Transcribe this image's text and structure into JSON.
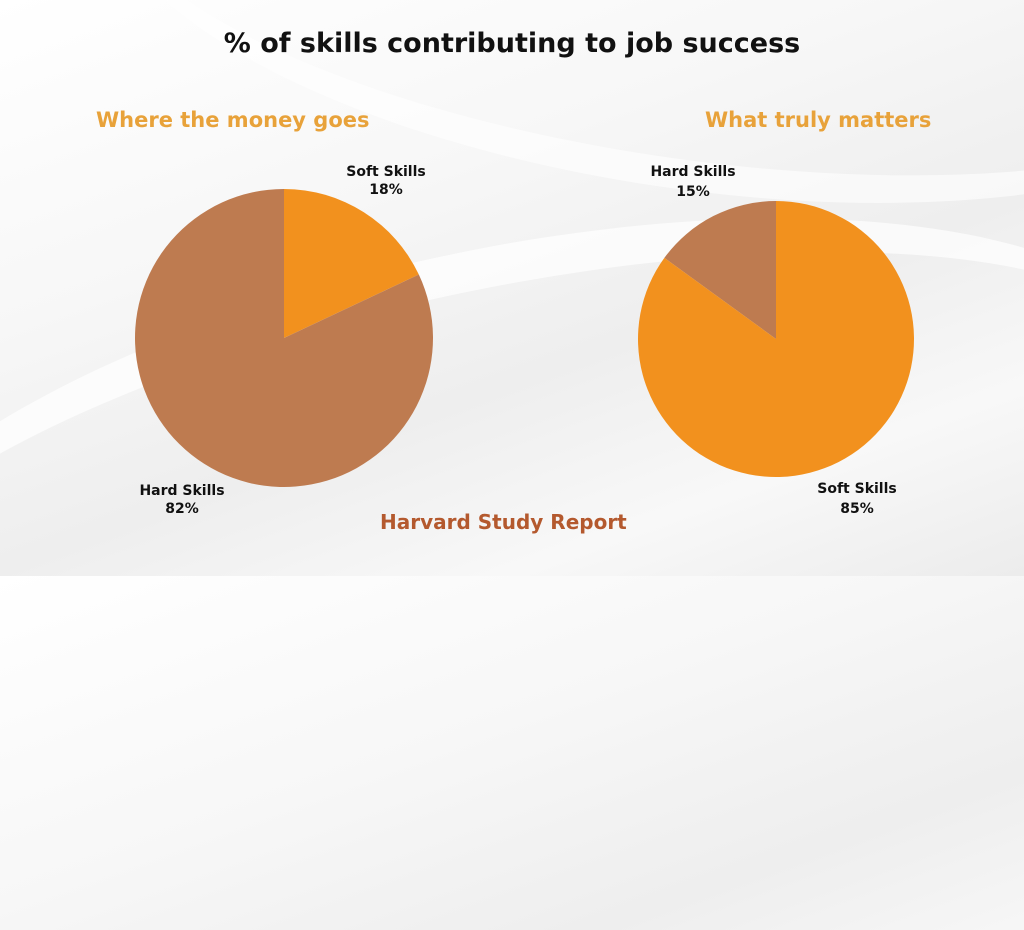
{
  "title": "% of skills contributing to job success",
  "source": "Harvard Study Report",
  "colors": {
    "soft": "#f2911e",
    "hard": "#be7b50"
  },
  "chart_data": [
    {
      "type": "pie",
      "title": "Where the money goes",
      "slices": [
        {
          "label": "Soft Skills",
          "value": 18,
          "display": "18%",
          "color": "#f2911e"
        },
        {
          "label": "Hard Skills",
          "value": 82,
          "display": "82%",
          "color": "#be7b50"
        }
      ]
    },
    {
      "type": "pie",
      "title": "What truly matters",
      "slices": [
        {
          "label": "Soft Skills",
          "value": 85,
          "display": "85%",
          "color": "#f2911e"
        },
        {
          "label": "Hard Skills",
          "value": 15,
          "display": "15%",
          "color": "#be7b50"
        }
      ]
    }
  ]
}
